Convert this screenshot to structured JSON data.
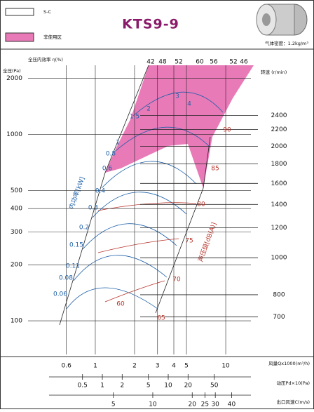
{
  "legend": [
    {
      "label": "S-C",
      "color": "#ffffff"
    },
    {
      "label": "非使用区",
      "color": "#e97ab8"
    }
  ],
  "title": "KTS9-9",
  "gas_density": "气体密度：1.2kg/m³",
  "chart_data": {
    "type": "fan-curve",
    "ylabel": "全压(Pa)",
    "efficiency_label": "全压内效率 η(%)",
    "speed_label": "转速 (r/min)",
    "power_label": "内功率[kW]",
    "noise_label": "声压级[dB(A)]",
    "log_scale": true,
    "grid": true,
    "ylim": [
      66,
      2350
    ],
    "yticks": [
      100,
      200,
      300,
      400,
      500,
      1000,
      2000
    ],
    "x_axes": [
      {
        "label": "风量Qx1000(m³/h)",
        "xlim": [
          0.305,
          15.6
        ],
        "xticks": [
          0.6,
          1,
          2,
          3,
          4,
          5,
          10
        ]
      },
      {
        "label": "动压Pd×10(Pa)",
        "xlim": [
          0.0745,
          180
        ],
        "xticks": [
          0.5,
          1,
          2,
          5,
          10,
          20,
          50
        ]
      },
      {
        "label": "出口风速C(m/s)",
        "xlim": [
          1.117,
          56.1
        ],
        "xticks": [
          5,
          10,
          20,
          25,
          30,
          40
        ]
      }
    ],
    "speeds": {
      "values": [
        2400,
        2200,
        2000,
        1800,
        1600,
        1400,
        1200,
        1000,
        800,
        700
      ],
      "pressure": [
        1263,
        1062,
        863,
        695,
        546,
        421,
        316,
        218,
        138,
        105
      ]
    },
    "efficiency": [
      42,
      48,
      52,
      60,
      56,
      52,
      46
    ],
    "power": [
      4,
      3,
      2,
      1.5,
      1,
      0.8,
      0.6,
      0.4,
      0.3,
      0.2,
      0.15,
      0.11,
      0.08,
      0.06
    ],
    "noise": [
      90,
      85,
      80,
      75,
      70,
      60,
      65
    ]
  }
}
